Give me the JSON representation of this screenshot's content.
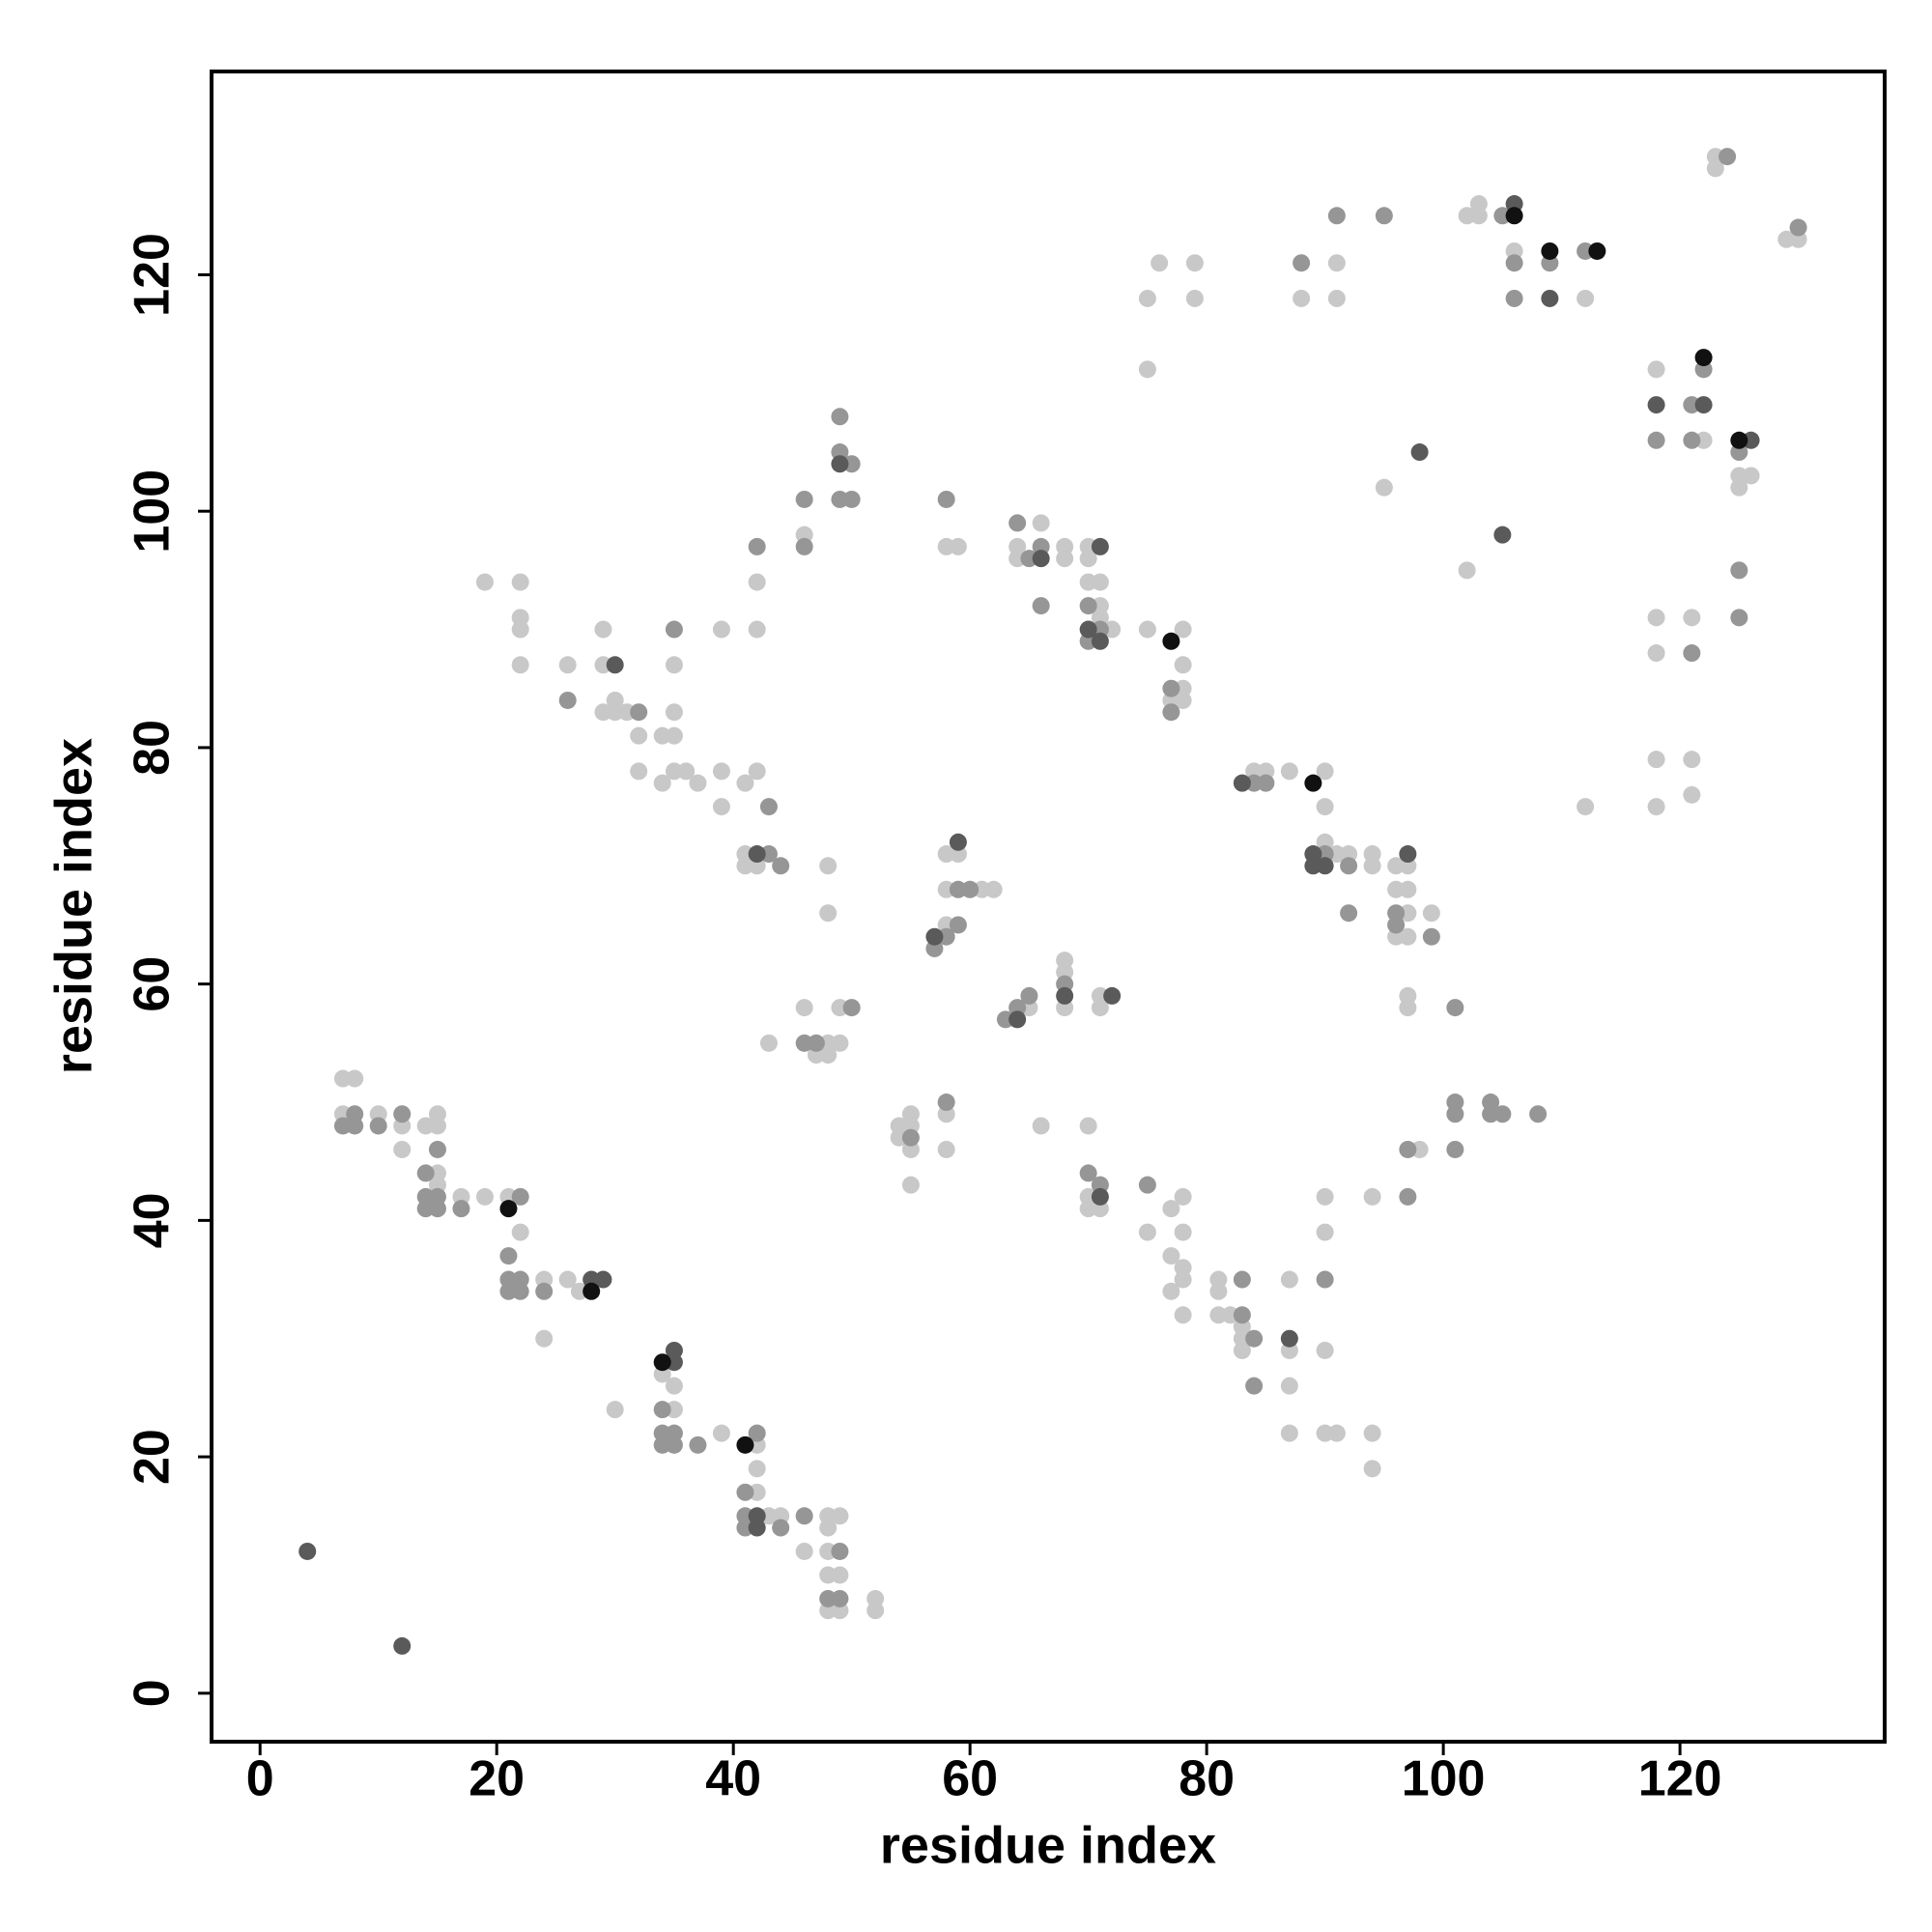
{
  "chart_data": {
    "type": "scatter",
    "x_label": "residue index",
    "y_label": "residue index",
    "xlim": [
      -4.1,
      137.3
    ],
    "ylim": [
      -4.1,
      137.2
    ],
    "xticks": [
      0,
      20,
      40,
      60,
      80,
      100,
      120
    ],
    "yticks": [
      0,
      20,
      40,
      60,
      80,
      100,
      120
    ],
    "series": [
      {
        "color": "#c8c8c8",
        "x": [
          7,
          8,
          7,
          10,
          12,
          12,
          14,
          15,
          15,
          15,
          15,
          17,
          19,
          21,
          22,
          24,
          24,
          26,
          27,
          34,
          35,
          30,
          35,
          39,
          42,
          42,
          42,
          43,
          44,
          46,
          48,
          49,
          48,
          48,
          48,
          49,
          48,
          49,
          52,
          52,
          19,
          22,
          22,
          22,
          22,
          26,
          29,
          29,
          30,
          29,
          30,
          31,
          32,
          34,
          35,
          35,
          35,
          32,
          34,
          35,
          36,
          37,
          39,
          39,
          39,
          41,
          42,
          42,
          42,
          41,
          41,
          42,
          46,
          48,
          48,
          46,
          49,
          43,
          48,
          49,
          47,
          48,
          58,
          59,
          58,
          59,
          58,
          61,
          62,
          58,
          54,
          55,
          54,
          55,
          55,
          55,
          58,
          58,
          65,
          66,
          68,
          68,
          68,
          71,
          71,
          70,
          70,
          70,
          71,
          66,
          64,
          64,
          68,
          68,
          70,
          70,
          70,
          71,
          71,
          71,
          72,
          75,
          78,
          78,
          78,
          77,
          78,
          75,
          76,
          79,
          79,
          75,
          88,
          91,
          91,
          84,
          85,
          87,
          90,
          90,
          90,
          91,
          92,
          94,
          94,
          96,
          97,
          96,
          97,
          97,
          99,
          96,
          97,
          97,
          97,
          95,
          102,
          98,
          75,
          77,
          78,
          78,
          77,
          78,
          77,
          78,
          78,
          81,
          81,
          81,
          82,
          83,
          83,
          83,
          87,
          87,
          87,
          87,
          90,
          90,
          90,
          90,
          91,
          94,
          94,
          94,
          102,
          103,
          103,
          106,
          112,
          123,
          123,
          129,
          130,
          118,
          122,
          125,
          126,
          125,
          118,
          118,
          121,
          118,
          118,
          121,
          121,
          112
        ],
        "values": [
          52,
          52,
          49,
          49,
          48,
          46,
          48,
          49,
          48,
          44,
          43,
          42,
          42,
          42,
          39,
          35,
          30,
          35,
          34,
          27,
          26,
          24,
          24,
          22,
          21,
          19,
          17,
          15,
          15,
          12,
          15,
          15,
          14,
          12,
          10,
          10,
          7,
          7,
          8,
          7,
          94,
          94,
          91,
          90,
          87,
          87,
          90,
          87,
          84,
          83,
          83,
          83,
          81,
          81,
          81,
          83,
          87,
          78,
          77,
          78,
          78,
          77,
          78,
          75,
          90,
          77,
          78,
          90,
          94,
          71,
          70,
          70,
          98,
          70,
          66,
          58,
          58,
          55,
          55,
          55,
          54,
          54,
          97,
          97,
          71,
          71,
          68,
          68,
          68,
          65,
          48,
          49,
          47,
          48,
          46,
          43,
          49,
          46,
          58,
          48,
          62,
          61,
          58,
          59,
          58,
          48,
          42,
          41,
          41,
          99,
          97,
          96,
          97,
          96,
          97,
          96,
          94,
          94,
          92,
          91,
          90,
          90,
          90,
          87,
          85,
          84,
          84,
          118,
          121,
          121,
          118,
          112,
          118,
          121,
          118,
          78,
          78,
          78,
          78,
          75,
          72,
          71,
          71,
          71,
          70,
          70,
          70,
          68,
          68,
          66,
          66,
          64,
          64,
          59,
          58,
          102,
          95,
          46,
          39,
          41,
          42,
          39,
          37,
          36,
          34,
          35,
          32,
          35,
          34,
          32,
          32,
          31,
          30,
          29,
          35,
          29,
          26,
          22,
          42,
          39,
          29,
          22,
          22,
          42,
          22,
          19,
          125,
          126,
          125,
          122,
          118,
          130,
          129,
          123,
          123,
          112,
          106,
          103,
          103,
          102,
          91,
          88,
          91,
          79,
          75,
          79,
          76,
          75
        ]
      },
      {
        "color": "#969696",
        "x": [
          8,
          7,
          8,
          10,
          12,
          15,
          14,
          14,
          15,
          14,
          15,
          17,
          22,
          21,
          21,
          22,
          21,
          22,
          24,
          34,
          34,
          35,
          34,
          35,
          37,
          42,
          41,
          41,
          41,
          44,
          46,
          49,
          48,
          49,
          26,
          32,
          35,
          42,
          43,
          43,
          44,
          46,
          46,
          49,
          49,
          50,
          49,
          50,
          50,
          46,
          47,
          58,
          59,
          60,
          59,
          58,
          57,
          55,
          58,
          63,
          64,
          65,
          68,
          70,
          71,
          64,
          66,
          65,
          66,
          70,
          71,
          70,
          77,
          77,
          88,
          91,
          95,
          84,
          85,
          90,
          92,
          92,
          96,
          96,
          99,
          101,
          97,
          97,
          101,
          101,
          101,
          104,
          104,
          105,
          108,
          75,
          83,
          83,
          84,
          84,
          90,
          105,
          106,
          106,
          109,
          112,
          124,
          130,
          118,
          121,
          122,
          121,
          125,
          125,
          125,
          121
        ],
        "values": [
          49,
          48,
          48,
          48,
          49,
          46,
          44,
          42,
          42,
          41,
          41,
          41,
          42,
          37,
          35,
          35,
          34,
          34,
          34,
          24,
          22,
          22,
          21,
          21,
          21,
          22,
          17,
          15,
          14,
          14,
          15,
          12,
          8,
          8,
          84,
          83,
          90,
          97,
          75,
          71,
          70,
          101,
          97,
          108,
          105,
          104,
          101,
          101,
          58,
          55,
          55,
          101,
          68,
          68,
          65,
          64,
          63,
          47,
          50,
          57,
          58,
          59,
          60,
          44,
          43,
          99,
          97,
          96,
          92,
          92,
          90,
          89,
          85,
          83,
          121,
          125,
          125,
          77,
          77,
          71,
          70,
          66,
          66,
          65,
          64,
          58,
          46,
          42,
          50,
          49,
          46,
          50,
          49,
          49,
          49,
          43,
          35,
          32,
          30,
          26,
          35,
          125,
          121,
          118,
          121,
          122,
          130,
          124,
          106,
          109,
          112,
          106,
          105,
          95,
          91,
          88
        ]
      },
      {
        "color": "#5a5a5a",
        "x": [
          4,
          12,
          28,
          29,
          35,
          35,
          42,
          42,
          30,
          42,
          49,
          59,
          57,
          64,
          68,
          72,
          71,
          66,
          71,
          70,
          71,
          83,
          89,
          89,
          90,
          97,
          98,
          105,
          87,
          106,
          109,
          118,
          122,
          126
        ],
        "values": [
          12,
          4,
          35,
          35,
          29,
          28,
          15,
          14,
          87,
          71,
          104,
          72,
          64,
          57,
          59,
          59,
          42,
          96,
          97,
          90,
          89,
          77,
          71,
          70,
          70,
          71,
          105,
          98,
          30,
          126,
          118,
          109,
          109,
          106
        ]
      },
      {
        "color": "#111111",
        "x": [
          21,
          28,
          34,
          41,
          77,
          89,
          106,
          109,
          113,
          122,
          125
        ],
        "values": [
          41,
          34,
          28,
          21,
          89,
          77,
          125,
          122,
          122,
          113,
          106
        ]
      }
    ]
  }
}
